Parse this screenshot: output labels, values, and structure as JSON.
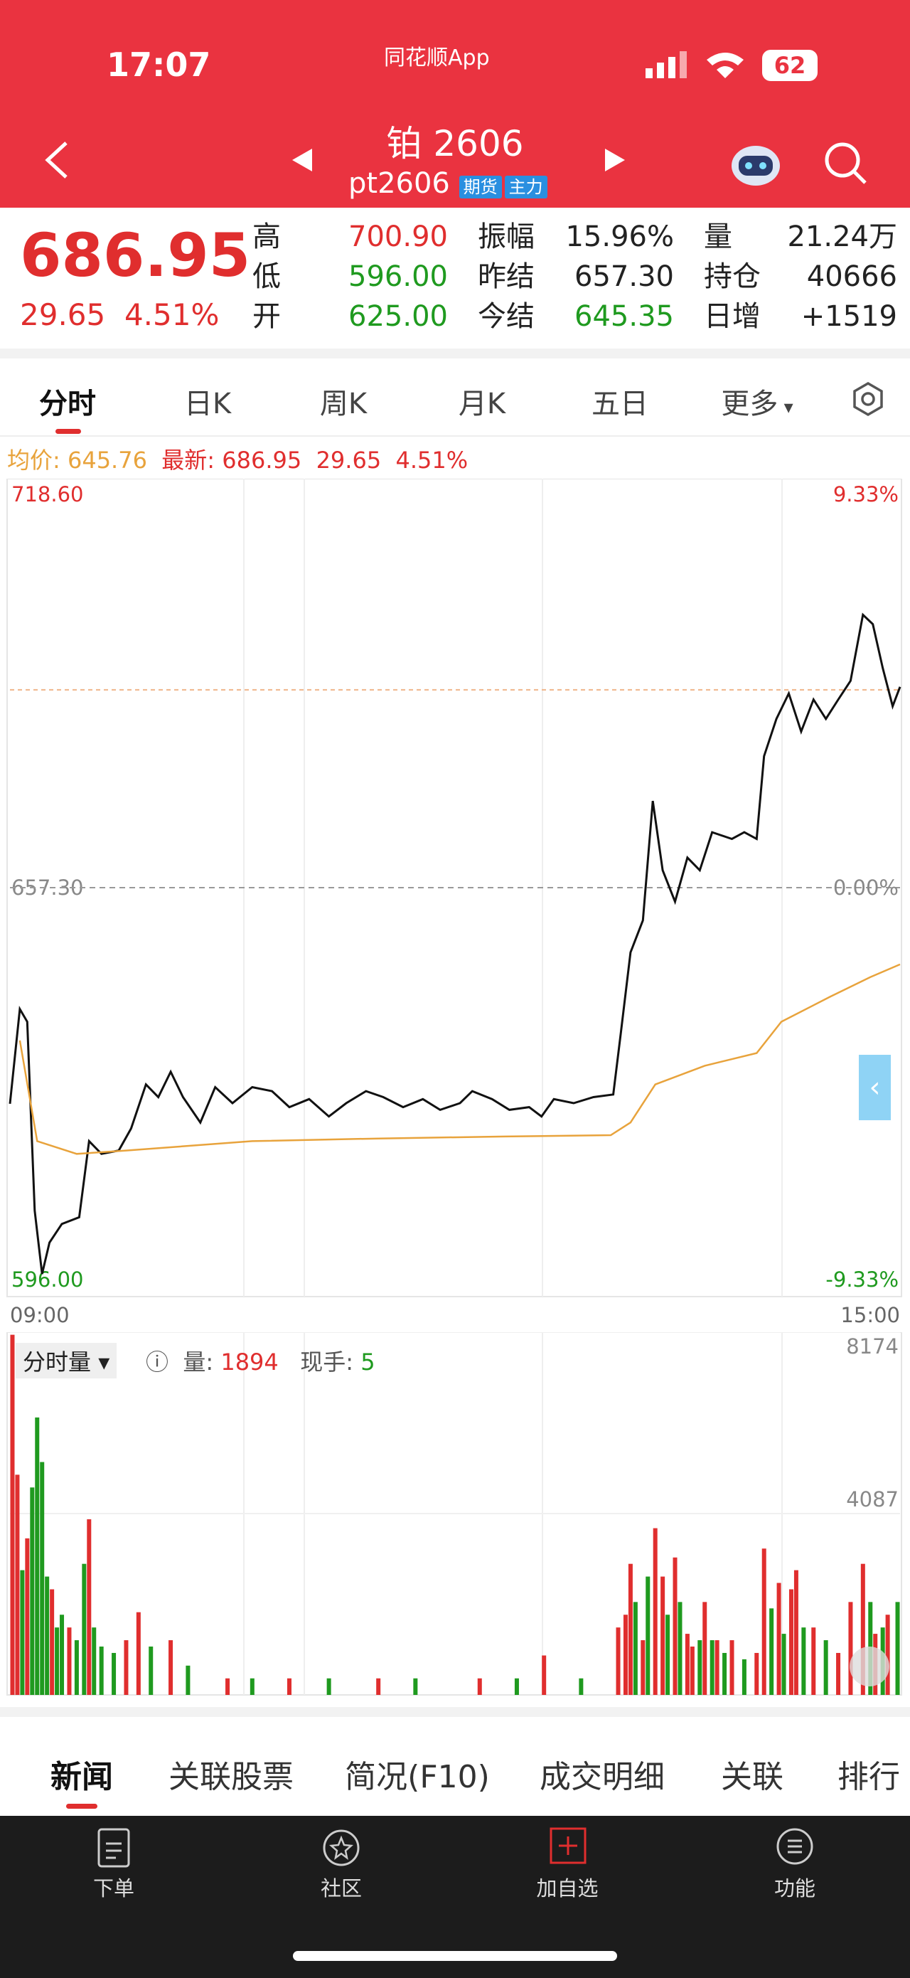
{
  "status": {
    "time": "17:07",
    "app": "同花顺App",
    "battery": "62"
  },
  "header": {
    "title": "铂 2606",
    "code": "pt2606",
    "tags": [
      "期货",
      "主力"
    ]
  },
  "quote": {
    "price": "686.95",
    "change": "29.65",
    "pct": "4.51%",
    "rows": [
      [
        "高",
        "700.90",
        "振幅",
        "15.96%",
        "量",
        "21.24万"
      ],
      [
        "低",
        "596.00",
        "昨结",
        "657.30",
        "持仓",
        "40666"
      ],
      [
        "开",
        "625.00",
        "今结",
        "645.35",
        "日增",
        "+1519"
      ]
    ]
  },
  "period_tabs": [
    "分时",
    "日K",
    "周K",
    "月K",
    "五日",
    "更多"
  ],
  "info": {
    "avg_label": "均价:",
    "avg": "645.76",
    "latest_label": "最新:",
    "latest": "686.95",
    "change": "29.65",
    "pct": "4.51%"
  },
  "volume_info": {
    "selector": "分时量",
    "vol_label": "量:",
    "vol": "1894",
    "hand_label": "现手:",
    "hand": "5"
  },
  "chart_data": [
    {
      "type": "line",
      "xlim": [
        0,
        360
      ],
      "xticks": [
        {
          "value": 0,
          "label": "09:00"
        },
        {
          "value": 360,
          "label": "15:00"
        }
      ],
      "ylim": [
        596.0,
        718.6
      ],
      "yticks": [
        {
          "value": 596.0,
          "label": "596.00"
        },
        {
          "value": 657.3,
          "label": "657.30"
        },
        {
          "value": 718.6,
          "label": "718.60"
        }
      ],
      "y2lim": [
        -9.33,
        9.33
      ],
      "y2ticks": [
        {
          "value": -9.33,
          "label": "-9.33%"
        },
        {
          "value": 0,
          "label": "0.00%"
        },
        {
          "value": 9.33,
          "label": "9.33%"
        }
      ],
      "latest_line": 686.95,
      "series": [
        {
          "color": "#111111",
          "x": [
            0,
            4,
            7,
            10,
            13,
            16,
            21,
            28,
            32,
            37,
            44,
            49,
            55,
            60,
            65,
            70,
            77,
            83,
            90,
            98,
            106,
            113,
            121,
            129,
            136,
            144,
            151,
            159,
            167,
            174,
            182,
            187,
            195,
            202,
            210,
            215,
            220,
            228,
            236,
            244,
            247,
            251,
            256,
            260,
            264,
            269,
            274,
            279,
            284,
            292,
            297,
            302,
            305,
            310,
            315,
            320,
            325,
            330,
            335,
            340,
            345,
            349,
            353,
            357,
            360
          ],
          "values": [
            624.9,
            639.1,
            637.2,
            608.9,
            599.4,
            604.1,
            606.9,
            607.9,
            619.3,
            617.4,
            617.9,
            621.2,
            627.8,
            625.9,
            629.7,
            625.9,
            622.1,
            627.4,
            625.0,
            627.4,
            626.8,
            624.4,
            625.6,
            623.0,
            625.0,
            626.8,
            625.9,
            624.4,
            625.6,
            624.0,
            625.0,
            626.8,
            625.6,
            624.0,
            624.4,
            623.0,
            625.6,
            625.0,
            625.9,
            626.3,
            635.3,
            647.6,
            652.4,
            670.3,
            659.9,
            655.2,
            661.8,
            659.9,
            665.6,
            664.6,
            665.6,
            664.6,
            677.0,
            682.6,
            686.4,
            680.7,
            685.5,
            682.6,
            685.5,
            688.3,
            698.2,
            696.8,
            690.2,
            684.5,
            687.4
          ]
        },
        {
          "color": "#e8a33c",
          "x": [
            4,
            11,
            27,
            47,
            98,
            149,
            200,
            243,
            251,
            261,
            281,
            302,
            312,
            332,
            348,
            360
          ],
          "values": [
            634.4,
            619.3,
            617.4,
            617.9,
            619.3,
            619.7,
            620.0,
            620.2,
            622.1,
            627.8,
            630.6,
            632.5,
            637.2,
            641.0,
            643.9,
            645.8
          ]
        }
      ]
    },
    {
      "type": "bar",
      "xlim": [
        0,
        360
      ],
      "ylim": [
        0,
        8174
      ],
      "yticks": [
        4087,
        8174
      ],
      "series": [
        {
          "color": "#e02e2e",
          "x": [
            1,
            3,
            7,
            17,
            24,
            32,
            47,
            52,
            65,
            88,
            113,
            149,
            190,
            216,
            246,
            249,
            251,
            256,
            261,
            264,
            269,
            274,
            276,
            281,
            286,
            292,
            302,
            305,
            311,
            316,
            318,
            325,
            335,
            340,
            345,
            350,
            355
          ],
          "values": [
            8116,
            4962,
            3528,
            2380,
            1520,
            3958,
            1233,
            1864,
            1233,
            373,
            373,
            373,
            373,
            889,
            1520,
            1807,
            2954,
            1233,
            3757,
            2667,
            3097,
            1377,
            1090,
            2094,
            1233,
            1233,
            946,
            3298,
            2524,
            2380,
            2811,
            1520,
            946,
            2094,
            2954,
            1377,
            1807
          ]
        },
        {
          "color": "#1f9a1f",
          "x": [
            5,
            9,
            11,
            13,
            15,
            19,
            21,
            27,
            30,
            34,
            37,
            42,
            57,
            72,
            98,
            129,
            164,
            205,
            231,
            253,
            258,
            266,
            271,
            279,
            284,
            289,
            297,
            308,
            313,
            321,
            330,
            348,
            353,
            359
          ],
          "values": [
            2811,
            4675,
            6252,
            5248,
            2667,
            1520,
            1807,
            1233,
            2954,
            1520,
            1090,
            946,
            1090,
            660,
            373,
            373,
            373,
            373,
            373,
            2094,
            2667,
            1807,
            2094,
            1233,
            1233,
            946,
            803,
            1950,
            1377,
            1520,
            1233,
            2094,
            1520,
            2094
          ]
        }
      ]
    }
  ],
  "bottom_tabs": [
    "新闻",
    "关联股票",
    "简况(F10)",
    "成交明细",
    "关联",
    "排行"
  ],
  "nav": [
    "下单",
    "社区",
    "加自选",
    "功能"
  ]
}
